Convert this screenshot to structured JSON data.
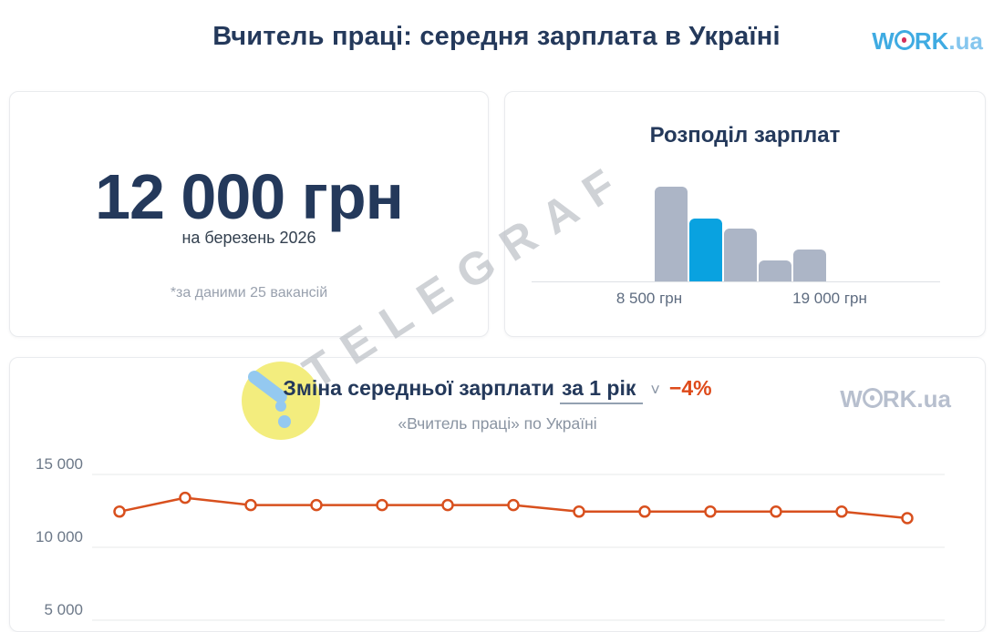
{
  "header": {
    "title": "Вчитель праці: середня зарплата в Україні",
    "logo": {
      "word": "W",
      "ork": "RK",
      "tld": ".ua"
    }
  },
  "salary_card": {
    "amount": "12 000 грн",
    "period": "на березень 2026",
    "note": "*за даними 25 вакансій"
  },
  "distribution_card": {
    "title": "Розподіл зарплат"
  },
  "trend_card": {
    "title": "Зміна середньої зарплати",
    "period": "за 1 рік",
    "chevron": "˅",
    "delta": "−4%",
    "subtitle": "«Вчитель праці» по Україні",
    "logo": {
      "word": "W",
      "ork": "RK",
      "tld": ".ua"
    }
  },
  "watermark": {
    "text": "TELEGRAF"
  },
  "colors": {
    "navy_text": "#24395B",
    "brand_blue": "#3FABE2",
    "brand_dot_red": "#D5305A",
    "bar_gray": "#ACB5C6",
    "bar_highlight_blue": "#09A2E0",
    "line_orange": "#D8501E",
    "delta_orange": "#DE4A1A",
    "muted_gray": "#8A94A2",
    "watermark_yellow": "#F3ED78",
    "watermark_blue": "#8FC7F0"
  },
  "chart_data": [
    {
      "type": "bar",
      "title": "Розподіл зарплат",
      "values": [
        9,
        6,
        5,
        2,
        3
      ],
      "values_estimated_from_heights": true,
      "highlight_index": 1,
      "x_labels": {
        "first": "8 500 грн",
        "last": "19 000 грн"
      },
      "bar_color": "#ACB5C6",
      "highlight_color": "#09A2E0",
      "grid": false
    },
    {
      "type": "line",
      "title": "Зміна середньої зарплати за 1 рік",
      "delta": "−4%",
      "subtitle": "«Вчитель праці» по Україні",
      "values": [
        12450,
        13400,
        12900,
        12900,
        12900,
        12900,
        12900,
        12450,
        12450,
        12450,
        12450,
        12450,
        12000
      ],
      "values_estimated_from_pixels": true,
      "x_labels_visible": false,
      "y_ticks_labels": [
        "15 000",
        "10 000",
        "5 000"
      ],
      "y_ticks_values": [
        15000,
        10000,
        5000
      ],
      "line_color": "#D8501E",
      "marker": "open-circle",
      "grid": true,
      "legend": false
    }
  ]
}
